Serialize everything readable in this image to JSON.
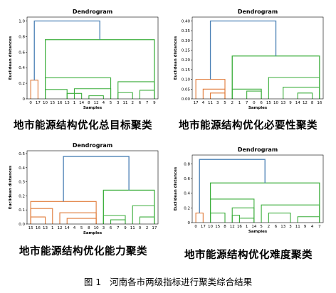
{
  "colors": {
    "top_link": "#4a80b5",
    "cluster_1": "#e07b39",
    "cluster_2": "#3cae3c"
  },
  "figure_caption": "图 1   河南各市两级指标进行聚类综合结果",
  "chart_data": [
    {
      "type": "dendrogram",
      "title": "Dendrogram",
      "xlabel": "Samples",
      "ylabel": "Euclidean distances",
      "caption": "地市能源结构优化总目标聚类",
      "ylim": [
        0,
        1.05
      ],
      "yticks": [
        0.0,
        0.2,
        0.4,
        0.6,
        0.8,
        1.0
      ],
      "ytick_labels": [
        "0",
        "0.2",
        "0.4",
        "0.6",
        "0.8",
        "1.0"
      ],
      "leaves": [
        "0",
        "17",
        "10",
        "15",
        "16",
        "13",
        "1",
        "14",
        "8",
        "12",
        "4",
        "5",
        "3",
        "11",
        "2",
        "6",
        "7",
        "9"
      ],
      "root_height": 1.0,
      "clusters": [
        {
          "leaves": [
            "0",
            "17"
          ],
          "color": "cluster_1",
          "height": 0.24
        },
        {
          "leaves": [
            "10",
            "15",
            "16",
            "13",
            "1",
            "14",
            "8",
            "12",
            "4",
            "5",
            "3",
            "11",
            "2",
            "6",
            "7",
            "9"
          ],
          "color": "cluster_2",
          "height": 0.76
        }
      ]
    },
    {
      "type": "dendrogram",
      "title": "Dendrogram",
      "xlabel": "Samples",
      "ylabel": "Euclidean distances",
      "caption": "地市能源结构优化必要性聚类",
      "ylim": [
        0,
        0.42
      ],
      "yticks": [
        0.0,
        0.05,
        0.1,
        0.15,
        0.2,
        0.25,
        0.3,
        0.35,
        0.4
      ],
      "ytick_labels": [
        "0.00",
        "0.05",
        "0.10",
        "0.15",
        "0.20",
        "0.25",
        "0.30",
        "0.35",
        "0.40"
      ],
      "leaves": [
        "17",
        "4",
        "11",
        "3",
        "5",
        "2",
        "1",
        "7",
        "0",
        "6",
        "15",
        "10",
        "13",
        "9",
        "14",
        "12",
        "8",
        "16"
      ],
      "root_height": 0.4,
      "clusters": [
        {
          "leaves": [
            "17",
            "4",
            "11",
            "3",
            "5"
          ],
          "color": "cluster_1",
          "height": 0.1
        },
        {
          "leaves": [
            "2",
            "1",
            "7",
            "0",
            "6",
            "15",
            "10",
            "13",
            "9",
            "14",
            "12",
            "8",
            "16"
          ],
          "color": "cluster_2",
          "height": 0.22
        }
      ]
    },
    {
      "type": "dendrogram",
      "title": "Dendrogram",
      "xlabel": "Samples",
      "ylabel": "Euclidean distances",
      "caption": "地市能源结构优化能力聚类",
      "ylim": [
        0,
        0.52
      ],
      "yticks": [
        0.0,
        0.1,
        0.2,
        0.3,
        0.4,
        0.5
      ],
      "ytick_labels": [
        "0.0",
        "0.1",
        "0.2",
        "0.3",
        "0.4",
        "0.5"
      ],
      "leaves": [
        "15",
        "16",
        "13",
        "1",
        "12",
        "14",
        "4",
        "5",
        "8",
        "10",
        "3",
        "6",
        "7",
        "9",
        "11",
        "0",
        "2",
        "17"
      ],
      "root_height": 0.48,
      "clusters": [
        {
          "leaves": [
            "15",
            "16",
            "13",
            "1",
            "12",
            "14",
            "4",
            "5",
            "8",
            "10"
          ],
          "color": "cluster_1",
          "height": 0.16
        },
        {
          "leaves": [
            "3",
            "6",
            "7",
            "9",
            "11",
            "0",
            "2",
            "17"
          ],
          "color": "cluster_2",
          "height": 0.24
        }
      ]
    },
    {
      "type": "dendrogram",
      "title": "Dendrogram",
      "xlabel": "Samples",
      "ylabel": "Euclidean distances",
      "caption": "地市能源结构优化难度聚类",
      "ylim": [
        0,
        0.92
      ],
      "yticks": [
        0.0,
        0.2,
        0.4,
        0.6,
        0.8
      ],
      "ytick_labels": [
        "0",
        "0.2",
        "0.4",
        "0.6",
        "0.8"
      ],
      "leaves": [
        "0",
        "17",
        "10",
        "15",
        "8",
        "12",
        "16",
        "1",
        "14",
        "5",
        "2",
        "6",
        "13",
        "3",
        "11",
        "9",
        "4",
        "7"
      ],
      "root_height": 0.86,
      "clusters": [
        {
          "leaves": [
            "0",
            "17"
          ],
          "color": "cluster_1",
          "height": 0.13
        },
        {
          "leaves": [
            "10",
            "15",
            "8",
            "12",
            "16",
            "1",
            "14",
            "5",
            "2",
            "6",
            "13",
            "3",
            "11",
            "9",
            "4",
            "7"
          ],
          "color": "cluster_2",
          "height": 0.54
        }
      ]
    }
  ]
}
